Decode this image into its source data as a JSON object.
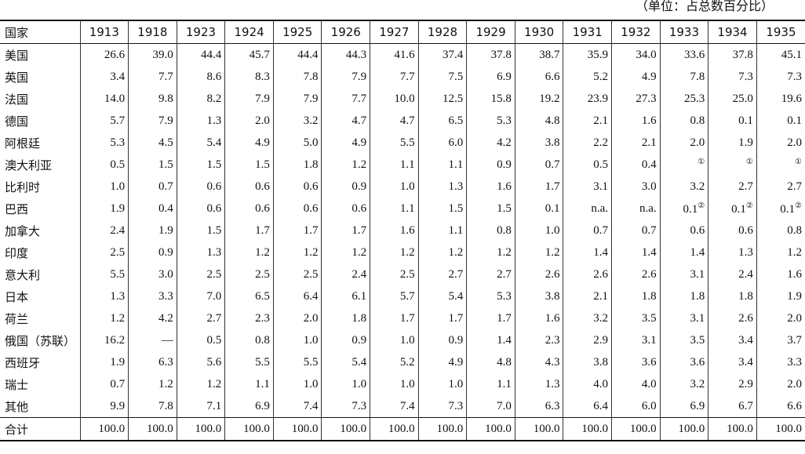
{
  "unit_note": "（单位：占总数百分比）",
  "table": {
    "header": [
      "国家",
      "1913",
      "1918",
      "1923",
      "1924",
      "1925",
      "1926",
      "1927",
      "1928",
      "1929",
      "1930",
      "1931",
      "1932",
      "1933",
      "1934",
      "1935"
    ],
    "rows": [
      [
        "美国",
        "26.6",
        "39.0",
        "44.4",
        "45.7",
        "44.4",
        "44.3",
        "41.6",
        "37.4",
        "37.8",
        "38.7",
        "35.9",
        "34.0",
        "33.6",
        "37.8",
        "45.1"
      ],
      [
        "英国",
        "3.4",
        "7.7",
        "8.6",
        "8.3",
        "7.8",
        "7.9",
        "7.7",
        "7.5",
        "6.9",
        "6.6",
        "5.2",
        "4.9",
        "7.8",
        "7.3",
        "7.3"
      ],
      [
        "法国",
        "14.0",
        "9.8",
        "8.2",
        "7.9",
        "7.9",
        "7.7",
        "10.0",
        "12.5",
        "15.8",
        "19.2",
        "23.9",
        "27.3",
        "25.3",
        "25.0",
        "19.6"
      ],
      [
        "德国",
        "5.7",
        "7.9",
        "1.3",
        "2.0",
        "3.2",
        "4.7",
        "4.7",
        "6.5",
        "5.3",
        "4.8",
        "2.1",
        "1.6",
        "0.8",
        "0.1",
        "0.1"
      ],
      [
        "阿根廷",
        "5.3",
        "4.5",
        "5.4",
        "4.9",
        "5.0",
        "4.9",
        "5.5",
        "6.0",
        "4.2",
        "3.8",
        "2.2",
        "2.1",
        "2.0",
        "1.9",
        "2.0"
      ],
      [
        "澳大利亚",
        "0.5",
        "1.5",
        "1.5",
        "1.5",
        "1.8",
        "1.2",
        "1.1",
        "1.1",
        "0.9",
        "0.7",
        "0.5",
        "0.4",
        {
          "note": "①"
        },
        {
          "note": "①"
        },
        {
          "note": "①"
        }
      ],
      [
        "比利时",
        "1.0",
        "0.7",
        "0.6",
        "0.6",
        "0.6",
        "0.9",
        "1.0",
        "1.3",
        "1.6",
        "1.7",
        "3.1",
        "3.0",
        "3.2",
        "2.7",
        "2.7"
      ],
      [
        "巴西",
        "1.9",
        "0.4",
        "0.6",
        "0.6",
        "0.6",
        "0.6",
        "1.1",
        "1.5",
        "1.5",
        "0.1",
        "n.a.",
        "n.a.",
        {
          "text": "0.1",
          "note": "②"
        },
        {
          "text": "0.1",
          "note": "②"
        },
        {
          "text": "0.1",
          "note": "②"
        }
      ],
      [
        "加拿大",
        "2.4",
        "1.9",
        "1.5",
        "1.7",
        "1.7",
        "1.7",
        "1.6",
        "1.1",
        "0.8",
        "1.0",
        "0.7",
        "0.7",
        "0.6",
        "0.6",
        "0.8"
      ],
      [
        "印度",
        "2.5",
        "0.9",
        "1.3",
        "1.2",
        "1.2",
        "1.2",
        "1.2",
        "1.2",
        "1.2",
        "1.2",
        "1.4",
        "1.4",
        "1.4",
        "1.3",
        "1.2"
      ],
      [
        "意大利",
        "5.5",
        "3.0",
        "2.5",
        "2.5",
        "2.5",
        "2.4",
        "2.5",
        "2.7",
        "2.7",
        "2.6",
        "2.6",
        "2.6",
        "3.1",
        "2.4",
        "1.6"
      ],
      [
        "日本",
        "1.3",
        "3.3",
        "7.0",
        "6.5",
        "6.4",
        "6.1",
        "5.7",
        "5.4",
        "5.3",
        "3.8",
        "2.1",
        "1.8",
        "1.8",
        "1.8",
        "1.9"
      ],
      [
        "荷兰",
        "1.2",
        "4.2",
        "2.7",
        "2.3",
        "2.0",
        "1.8",
        "1.7",
        "1.7",
        "1.7",
        "1.6",
        "3.2",
        "3.5",
        "3.1",
        "2.6",
        "2.0"
      ],
      [
        "俄国（苏联）",
        "16.2",
        "—",
        "0.5",
        "0.8",
        "1.0",
        "0.9",
        "1.0",
        "0.9",
        "1.4",
        "2.3",
        "2.9",
        "3.1",
        "3.5",
        "3.4",
        "3.7"
      ],
      [
        "西班牙",
        "1.9",
        "6.3",
        "5.6",
        "5.5",
        "5.5",
        "5.4",
        "5.2",
        "4.9",
        "4.8",
        "4.3",
        "3.8",
        "3.6",
        "3.6",
        "3.4",
        "3.3"
      ],
      [
        "瑞士",
        "0.7",
        "1.2",
        "1.2",
        "1.1",
        "1.0",
        "1.0",
        "1.0",
        "1.0",
        "1.1",
        "1.3",
        "4.0",
        "4.0",
        "3.2",
        "2.9",
        "2.0"
      ],
      [
        "其他",
        "9.9",
        "7.8",
        "7.1",
        "6.9",
        "7.4",
        "7.3",
        "7.4",
        "7.3",
        "7.0",
        "6.3",
        "6.4",
        "6.0",
        "6.9",
        "6.7",
        "6.6"
      ],
      [
        "合计",
        "100.0",
        "100.0",
        "100.0",
        "100.0",
        "100.0",
        "100.0",
        "100.0",
        "100.0",
        "100.0",
        "100.0",
        "100.0",
        "100.0",
        "100.0",
        "100.0",
        "100.0"
      ]
    ]
  }
}
